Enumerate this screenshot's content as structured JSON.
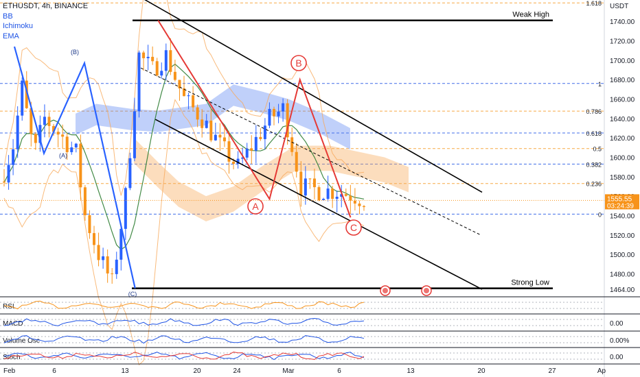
{
  "symbol_line": "ETHUSDT, 4h, BINANCE",
  "indicators": [
    "BB",
    "Ichimoku",
    "EMA"
  ],
  "currency": "USDT",
  "price_tag": {
    "value": "1555.55",
    "countdown": "03:24:39"
  },
  "fib_levels": [
    {
      "label": "1.618",
      "price": 1759
    },
    {
      "label": "1",
      "price": 1676
    },
    {
      "label": "0.786",
      "price": 1647.5
    },
    {
      "label": "0.618",
      "price": 1625
    },
    {
      "label": "0.5",
      "price": 1609
    },
    {
      "label": "0.382",
      "price": 1593
    },
    {
      "label": "0.236",
      "price": 1573
    },
    {
      "label": "0",
      "price": 1541.5
    }
  ],
  "annotations": {
    "weak_high": "Weak High",
    "strong_low": "Strong Low",
    "wave_A": "A",
    "wave_B": "B",
    "wave_C": "C",
    "wave_A_paren": "(A)",
    "wave_B_paren": "(B)",
    "wave_C_paren": "(C)"
  },
  "sub_panes": [
    {
      "name": "RSI",
      "value": ""
    },
    {
      "name": "MACD",
      "value": "0.00"
    },
    {
      "name": "Volume Osc",
      "value": "0.00%"
    },
    {
      "name": "Stoch",
      "value": "0.00"
    }
  ],
  "colors": {
    "candle_up": "#2962ff",
    "candle_down": "#f7931a",
    "wave_red": "#e53935",
    "wave_blue": "#2962ff",
    "fib_orange": "#f59a23",
    "fib_blue": "#1e53e5",
    "cloud_blue": "#4a78f0",
    "cloud_orange": "#f7a95a",
    "ema_green": "#2e7d32"
  },
  "chart_data": {
    "type": "candlestick",
    "title": "ETHUSDT, 4h, BINANCE",
    "y_axis": {
      "ticks": [
        1740,
        1720,
        1700,
        1680,
        1660,
        1640,
        1620,
        1600,
        1580,
        1560,
        1540,
        1520,
        1500,
        1480,
        1464
      ],
      "ylim": [
        1457,
        1762
      ]
    },
    "x_axis": {
      "ticks": [
        "Feb",
        "6",
        "13",
        "20",
        "24",
        "Mar",
        "6",
        "13",
        "20",
        "27",
        "Ap"
      ]
    },
    "series": [
      {
        "name": "ETHUSDT",
        "type": "candles",
        "last": 1555.55
      },
      {
        "name": "Weak High",
        "type": "hline",
        "value": 1741
      },
      {
        "name": "Strong Low",
        "type": "hline",
        "value": 1465
      }
    ],
    "waves": [
      {
        "labels": [
          "(A)",
          "(B)",
          "(C)"
        ],
        "points": [
          [
            "Feb 1",
            1714
          ],
          [
            "Feb 5",
            1604
          ],
          [
            "Feb 9",
            1697
          ],
          [
            "Feb 14",
            1465
          ]
        ]
      },
      {
        "labels": [
          "A",
          "B",
          "C"
        ],
        "points": [
          [
            "Feb 16",
            1741
          ],
          [
            "Feb 27",
            1557
          ],
          [
            "Mar 2",
            1680
          ],
          [
            "Mar 7",
            1538
          ]
        ]
      }
    ],
    "channel": {
      "upper": [
        [
          "Feb 13",
          1774
        ],
        [
          "Mar 22",
          1564
        ]
      ],
      "lower": [
        [
          "Feb 16",
          1639
        ],
        [
          "Mar 22",
          1464
        ]
      ]
    },
    "legend": "none",
    "grid": false
  }
}
